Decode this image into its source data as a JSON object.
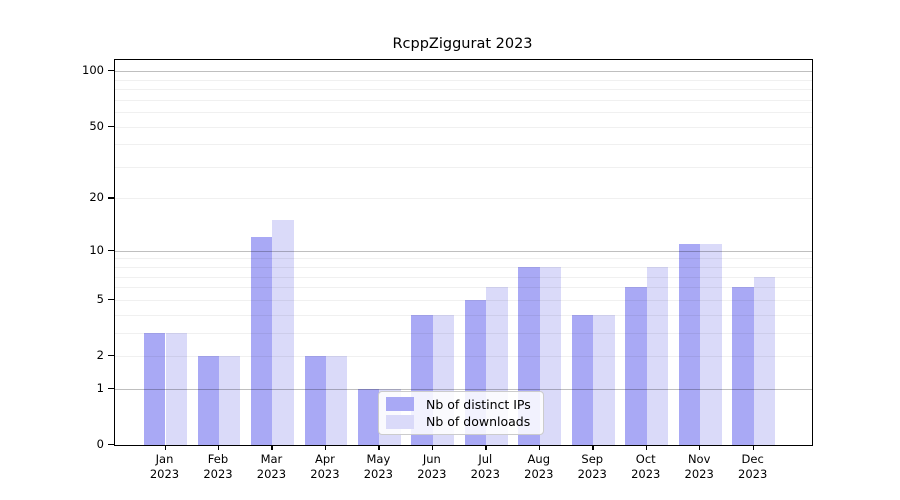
{
  "chart_data": {
    "type": "bar",
    "title": "RcppZiggurat 2023",
    "x_axis": {
      "months": [
        "Jan",
        "Feb",
        "Mar",
        "Apr",
        "May",
        "Jun",
        "Jul",
        "Aug",
        "Sep",
        "Oct",
        "Nov",
        "Dec"
      ],
      "year": "2023"
    },
    "y_axis": {
      "scale": "log1p",
      "ticks": [
        0,
        1,
        2,
        5,
        10,
        20,
        50,
        100
      ],
      "max": 115,
      "major_gridlines": [
        1,
        10,
        100
      ],
      "minor_gridlines": [
        2,
        3,
        4,
        5,
        6,
        7,
        8,
        9,
        20,
        30,
        40,
        50,
        60,
        70,
        80,
        90
      ],
      "grid_over_bars": true
    },
    "series": [
      {
        "name": "Nb of distinct IPs",
        "color": "#a9a9f5",
        "values": [
          3,
          2,
          12,
          2,
          1,
          4,
          5,
          8,
          4,
          6,
          11,
          6
        ]
      },
      {
        "name": "Nb of downloads",
        "color": "#dadaf9",
        "values": [
          3,
          2,
          15,
          2,
          1,
          4,
          6,
          8,
          4,
          8,
          11,
          7
        ]
      }
    ],
    "legend_position": "bottom-center"
  }
}
